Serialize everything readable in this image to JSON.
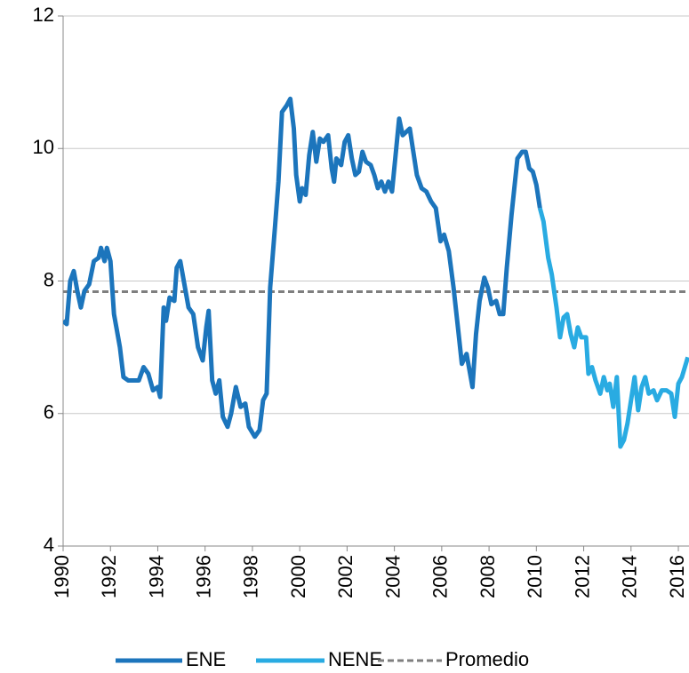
{
  "chart_data": {
    "type": "line",
    "xlim": [
      1990,
      2016.45
    ],
    "xticks": [
      1990,
      1992,
      1994,
      1996,
      1998,
      2000,
      2002,
      2004,
      2006,
      2008,
      2010,
      2012,
      2014,
      2016
    ],
    "ylim": [
      4,
      12
    ],
    "yticks": [
      4,
      6,
      8,
      10,
      12
    ],
    "grid": true,
    "legend": "bottom",
    "series": [
      {
        "name": "ENE",
        "color": "#1c75bc",
        "x": [
          1990.0,
          1990.15,
          1990.3,
          1990.45,
          1990.6,
          1990.75,
          1990.9,
          1991.1,
          1991.3,
          1991.5,
          1991.6,
          1991.75,
          1991.85,
          1992.0,
          1992.15,
          1992.25,
          1992.4,
          1992.55,
          1992.75,
          1993.0,
          1993.2,
          1993.4,
          1993.6,
          1993.8,
          1994.0,
          1994.1,
          1994.25,
          1994.35,
          1994.5,
          1994.7,
          1994.8,
          1994.95,
          1995.1,
          1995.3,
          1995.5,
          1995.7,
          1995.9,
          1996.05,
          1996.15,
          1996.3,
          1996.45,
          1996.6,
          1996.75,
          1996.95,
          1997.1,
          1997.3,
          1997.5,
          1997.7,
          1997.85,
          1998.1,
          1998.3,
          1998.45,
          1998.6,
          1998.75,
          1998.95,
          1999.1,
          1999.25,
          1999.45,
          1999.6,
          1999.75,
          1999.85,
          2000.0,
          2000.1,
          2000.25,
          2000.4,
          2000.55,
          2000.7,
          2000.85,
          2001.0,
          2001.2,
          2001.35,
          2001.45,
          2001.55,
          2001.75,
          2001.9,
          2002.05,
          2002.2,
          2002.35,
          2002.5,
          2002.65,
          2002.8,
          2003.0,
          2003.15,
          2003.3,
          2003.45,
          2003.6,
          2003.75,
          2003.9,
          2004.05,
          2004.2,
          2004.35,
          2004.5,
          2004.65,
          2004.8,
          2004.95,
          2005.15,
          2005.35,
          2005.55,
          2005.75,
          2005.95,
          2006.1,
          2006.3,
          2006.5,
          2006.7,
          2006.85,
          2007.05,
          2007.2,
          2007.3,
          2007.45,
          2007.6,
          2007.8,
          2007.95,
          2008.1,
          2008.3,
          2008.45,
          2008.6,
          2008.75,
          2008.95,
          2009.2,
          2009.4,
          2009.55,
          2009.7,
          2009.85,
          2010.0,
          2010.15
        ],
        "values": [
          7.4,
          7.35,
          8.0,
          8.15,
          7.85,
          7.6,
          7.85,
          7.95,
          8.3,
          8.35,
          8.5,
          8.3,
          8.5,
          8.3,
          7.5,
          7.3,
          7.0,
          6.55,
          6.5,
          6.5,
          6.5,
          6.7,
          6.6,
          6.35,
          6.4,
          6.25,
          7.6,
          7.4,
          7.75,
          7.7,
          8.2,
          8.3,
          8.0,
          7.6,
          7.5,
          7.0,
          6.8,
          7.3,
          7.55,
          6.5,
          6.3,
          6.5,
          5.95,
          5.8,
          6.0,
          6.4,
          6.1,
          6.15,
          5.8,
          5.65,
          5.75,
          6.2,
          6.3,
          7.9,
          8.8,
          9.5,
          10.55,
          10.65,
          10.75,
          10.3,
          9.6,
          9.2,
          9.4,
          9.3,
          9.9,
          10.25,
          9.8,
          10.15,
          10.1,
          10.2,
          9.7,
          9.5,
          9.85,
          9.75,
          10.1,
          10.2,
          9.85,
          9.6,
          9.65,
          9.95,
          9.8,
          9.75,
          9.6,
          9.4,
          9.5,
          9.35,
          9.5,
          9.35,
          9.9,
          10.45,
          10.2,
          10.25,
          10.3,
          9.95,
          9.6,
          9.4,
          9.35,
          9.2,
          9.1,
          8.6,
          8.7,
          8.45,
          7.9,
          7.25,
          6.75,
          6.9,
          6.6,
          6.4,
          7.2,
          7.7,
          8.05,
          7.9,
          7.65,
          7.7,
          7.5,
          7.5,
          8.2,
          9.0,
          9.85,
          9.95,
          9.95,
          9.7,
          9.65,
          9.45,
          9.1
        ]
      },
      {
        "name": "NENE",
        "color": "#29abe2",
        "x": [
          2010.15,
          2010.3,
          2010.5,
          2010.65,
          2010.85,
          2011.0,
          2011.15,
          2011.3,
          2011.45,
          2011.6,
          2011.75,
          2011.9,
          2012.1,
          2012.2,
          2012.35,
          2012.5,
          2012.7,
          2012.85,
          2013.0,
          2013.1,
          2013.25,
          2013.4,
          2013.55,
          2013.7,
          2013.85,
          2014.0,
          2014.15,
          2014.3,
          2014.45,
          2014.6,
          2014.75,
          2014.95,
          2015.1,
          2015.3,
          2015.5,
          2015.7,
          2015.85,
          2016.0,
          2016.15,
          2016.4
        ],
        "values": [
          9.1,
          8.9,
          8.35,
          8.1,
          7.6,
          7.15,
          7.45,
          7.5,
          7.2,
          7.0,
          7.3,
          7.15,
          7.15,
          6.6,
          6.7,
          6.5,
          6.3,
          6.55,
          6.35,
          6.45,
          6.1,
          6.55,
          5.5,
          5.6,
          5.85,
          6.2,
          6.55,
          6.05,
          6.4,
          6.55,
          6.3,
          6.35,
          6.2,
          6.35,
          6.35,
          6.3,
          5.95,
          6.45,
          6.55,
          6.85
        ]
      }
    ],
    "reference_line": {
      "name": "Promedio",
      "value": 7.84,
      "color": "#7f7f7f"
    }
  }
}
